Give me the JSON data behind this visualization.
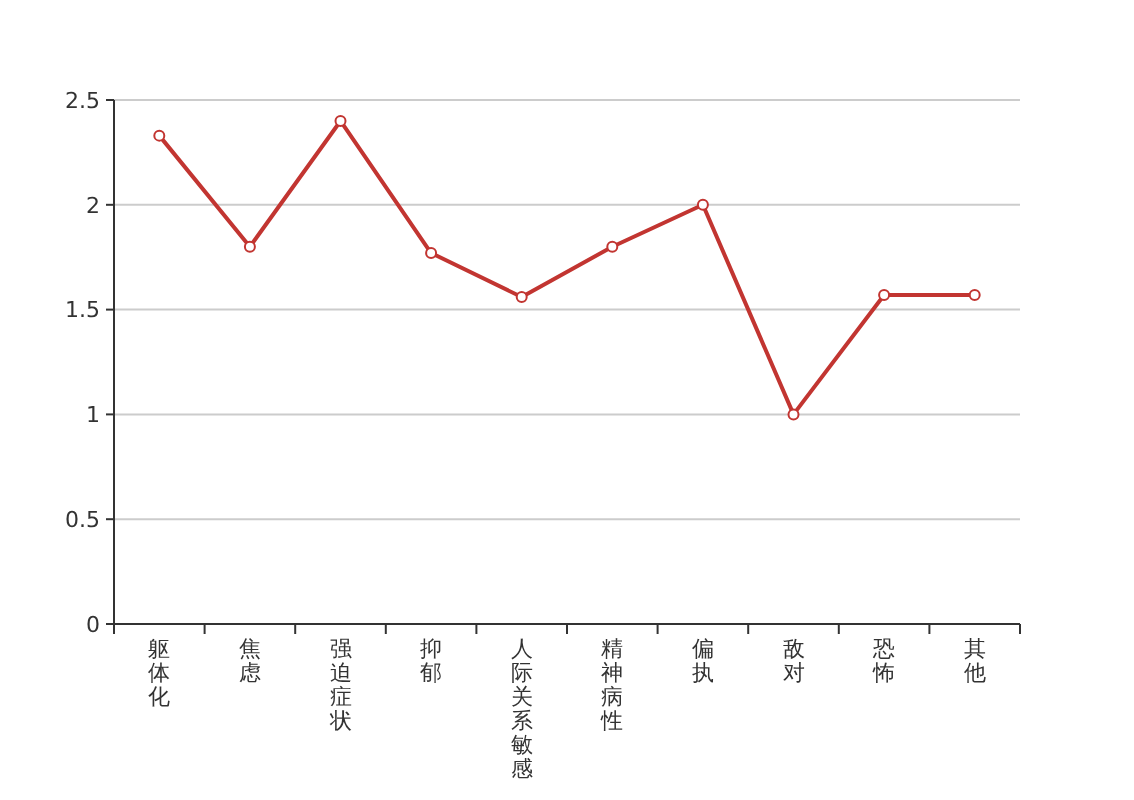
{
  "chart_data": {
    "type": "line",
    "categories": [
      "躯体化",
      "焦虑",
      "强迫症状",
      "抑郁",
      "人际关系敏感",
      "精神病性",
      "偏执",
      "敌对",
      "恐怖",
      "其他"
    ],
    "series": [
      {
        "color": "#c23531",
        "values": [
          2.33,
          1.8,
          2.4,
          1.77,
          1.56,
          1.8,
          2.0,
          1.0,
          1.57,
          1.57
        ]
      }
    ],
    "ylim": [
      0,
      2.5
    ],
    "yticks": [
      0,
      0.5,
      1,
      1.5,
      2,
      2.5
    ],
    "grid": "y",
    "marker": "circle",
    "line_style": "solid"
  }
}
